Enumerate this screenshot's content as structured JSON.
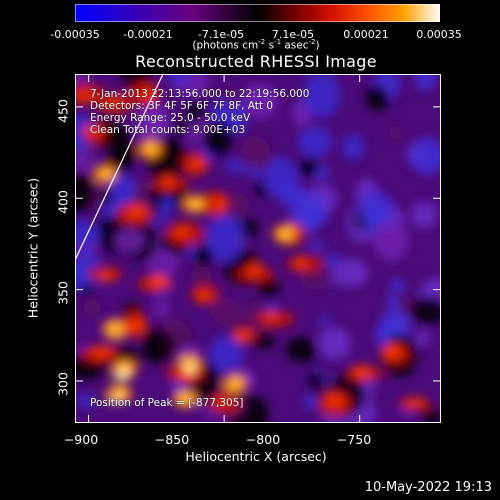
{
  "colorbar": {
    "ticks": [
      "-0.00035",
      "-0.00021",
      "-7.1e-05",
      "7.1e-05",
      "0.00021",
      "0.00035"
    ],
    "units_text": "(photons cm",
    "units_exp1": "-2",
    "units_mid": " s",
    "units_exp2": "-1",
    "units_mid2": " asec",
    "units_exp3": "-2",
    "units_end": ")",
    "range": [
      -0.00035,
      0.00035
    ],
    "colors": [
      "#0000ff",
      "#4b00a0",
      "#800080",
      "#000000",
      "#800000",
      "#ff2000",
      "#ff8000",
      "#ffffff"
    ]
  },
  "chart_data": {
    "type": "heatmap",
    "title": "Reconstructed RHESSI Image",
    "xlabel": "Heliocentric X (arcsec)",
    "ylabel": "Heliocentric Y (arcsec)",
    "xlim": [
      -905,
      -770
    ],
    "ylim": [
      277,
      468
    ],
    "x_ticks": [
      -900,
      -850,
      -800,
      -750
    ],
    "y_ticks": [
      300,
      350,
      400,
      450
    ],
    "peak_position": [
      -877,
      305
    ],
    "annotations": [
      "7-Jan-2013 22:13:56.000 to 22:19:56.000",
      "Detectors: 3F 4F 5F 6F 7F 8F, Att 0",
      "Energy Range: 25.0 - 50.0 keV",
      "Clean   Total counts: 9.00E+03",
      "Position of Peak = [-877,305]"
    ]
  },
  "x_tick_labels": [
    "−900",
    "−850",
    "−800",
    "−750"
  ],
  "y_tick_labels": [
    "450",
    "400",
    "350",
    "300"
  ],
  "timestamp": "10-May-2022 19:13"
}
